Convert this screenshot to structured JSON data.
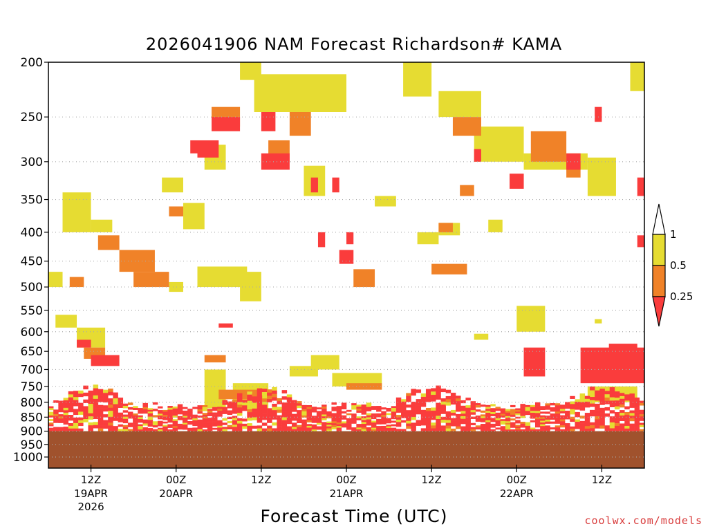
{
  "chart_data": {
    "type": "heatmap",
    "title": "2026041906 NAM Forecast Richardson# KAMA",
    "xlabel": "Forecast Time (UTC)",
    "ylabel": "",
    "y_axis": {
      "scale": "log-pressure (inverted)",
      "unit_implied": "mb",
      "ticks": [
        200,
        250,
        300,
        350,
        400,
        450,
        500,
        550,
        600,
        650,
        700,
        750,
        800,
        850,
        900,
        950,
        1000
      ],
      "range": [
        1000,
        200
      ],
      "gridlines": "dotted"
    },
    "x_axis": {
      "ticks": [
        {
          "hour": 6,
          "label": "12Z",
          "sub": "19APR",
          "sub2": "2026"
        },
        {
          "hour": 18,
          "label": "00Z",
          "sub": "20APR",
          "sub2": ""
        },
        {
          "hour": 30,
          "label": "12Z",
          "sub": "",
          "sub2": ""
        },
        {
          "hour": 42,
          "label": "00Z",
          "sub": "21APR",
          "sub2": ""
        },
        {
          "hour": 54,
          "label": "12Z",
          "sub": "",
          "sub2": ""
        },
        {
          "hour": 66,
          "label": "00Z",
          "sub": "22APR",
          "sub2": ""
        },
        {
          "hour": 78,
          "label": "12Z",
          "sub": "",
          "sub2": ""
        }
      ],
      "range_hours": [
        0,
        84
      ],
      "start": "2026041906"
    },
    "colorbar": {
      "levels": [
        "1",
        "0.5",
        "0.25"
      ],
      "bins": [
        {
          "range": "> 1",
          "color": "#ffffff",
          "fill": "none"
        },
        {
          "range": "0.5 - 1",
          "color": "#e6dc32"
        },
        {
          "range": "0.25 - 0.5",
          "color": "#f08228"
        },
        {
          "range": "< 0.25",
          "color": "#fa3c3c"
        }
      ]
    },
    "terrain": {
      "color": "#a0522d",
      "surface_pressure_approx": 900
    },
    "regions": [
      {
        "cat": "Y",
        "t0": 27,
        "t1": 30,
        "p0": 200,
        "p1": 215
      },
      {
        "cat": "Y",
        "t0": 29,
        "t1": 42,
        "p0": 210,
        "p1": 245
      },
      {
        "cat": "Y",
        "t0": 50,
        "t1": 54,
        "p0": 200,
        "p1": 230
      },
      {
        "cat": "Y",
        "t0": 55,
        "t1": 61,
        "p0": 225,
        "p1": 250
      },
      {
        "cat": "Y",
        "t0": 60,
        "t1": 67,
        "p0": 260,
        "p1": 300
      },
      {
        "cat": "Y",
        "t0": 67,
        "t1": 76,
        "p0": 290,
        "p1": 310
      },
      {
        "cat": "Y",
        "t0": 76,
        "t1": 80,
        "p0": 295,
        "p1": 345
      },
      {
        "cat": "Y",
        "t0": 82,
        "t1": 84,
        "p0": 200,
        "p1": 225
      },
      {
        "cat": "Y",
        "t0": 2,
        "t1": 6,
        "p0": 340,
        "p1": 400
      },
      {
        "cat": "Y",
        "t0": 6,
        "t1": 9,
        "p0": 380,
        "p1": 400
      },
      {
        "cat": "Y",
        "t0": 16,
        "t1": 19,
        "p0": 320,
        "p1": 340
      },
      {
        "cat": "Y",
        "t0": 19,
        "t1": 22,
        "p0": 355,
        "p1": 395
      },
      {
        "cat": "Y",
        "t0": 22,
        "t1": 25,
        "p0": 280,
        "p1": 310
      },
      {
        "cat": "Y",
        "t0": 36,
        "t1": 39,
        "p0": 305,
        "p1": 345
      },
      {
        "cat": "Y",
        "t0": 46,
        "t1": 49,
        "p0": 345,
        "p1": 360
      },
      {
        "cat": "Y",
        "t0": 52,
        "t1": 55,
        "p0": 400,
        "p1": 420
      },
      {
        "cat": "Y",
        "t0": 55,
        "t1": 58,
        "p0": 385,
        "p1": 405
      },
      {
        "cat": "Y",
        "t0": 62,
        "t1": 64,
        "p0": 380,
        "p1": 400
      },
      {
        "cat": "Y",
        "t0": 21,
        "t1": 28,
        "p0": 460,
        "p1": 500
      },
      {
        "cat": "Y",
        "t0": 27,
        "t1": 30,
        "p0": 470,
        "p1": 530
      },
      {
        "cat": "Y",
        "t0": 17,
        "t1": 19,
        "p0": 490,
        "p1": 510
      },
      {
        "cat": "Y",
        "t0": 0,
        "t1": 2,
        "p0": 470,
        "p1": 500
      },
      {
        "cat": "Y",
        "t0": 1,
        "t1": 4,
        "p0": 560,
        "p1": 590
      },
      {
        "cat": "Y",
        "t0": 4,
        "t1": 8,
        "p0": 590,
        "p1": 640
      },
      {
        "cat": "Y",
        "t0": 34,
        "t1": 38,
        "p0": 690,
        "p1": 720
      },
      {
        "cat": "Y",
        "t0": 37,
        "t1": 41,
        "p0": 660,
        "p1": 700
      },
      {
        "cat": "Y",
        "t0": 22,
        "t1": 25,
        "p0": 700,
        "p1": 820
      },
      {
        "cat": "Y",
        "t0": 26,
        "t1": 31,
        "p0": 740,
        "p1": 820
      },
      {
        "cat": "Y",
        "t0": 40,
        "t1": 47,
        "p0": 710,
        "p1": 750
      },
      {
        "cat": "Y",
        "t0": 66,
        "t1": 70,
        "p0": 540,
        "p1": 600
      },
      {
        "cat": "Y",
        "t0": 77,
        "t1": 78,
        "p0": 570,
        "p1": 580
      },
      {
        "cat": "Y",
        "t0": 60,
        "t1": 62,
        "p0": 605,
        "p1": 620
      },
      {
        "cat": "Y",
        "t0": 76,
        "t1": 83,
        "p0": 750,
        "p1": 800
      },
      {
        "cat": "O",
        "t0": 23,
        "t1": 27,
        "p0": 240,
        "p1": 260
      },
      {
        "cat": "O",
        "t0": 34,
        "t1": 37,
        "p0": 245,
        "p1": 270
      },
      {
        "cat": "O",
        "t0": 31,
        "t1": 34,
        "p0": 275,
        "p1": 300
      },
      {
        "cat": "O",
        "t0": 57,
        "t1": 61,
        "p0": 250,
        "p1": 270
      },
      {
        "cat": "O",
        "t0": 68,
        "t1": 73,
        "p0": 265,
        "p1": 300
      },
      {
        "cat": "O",
        "t0": 73,
        "t1": 75,
        "p0": 300,
        "p1": 320
      },
      {
        "cat": "O",
        "t0": 58,
        "t1": 60,
        "p0": 330,
        "p1": 345
      },
      {
        "cat": "O",
        "t0": 17,
        "t1": 19,
        "p0": 360,
        "p1": 375
      },
      {
        "cat": "O",
        "t0": 7,
        "t1": 10,
        "p0": 405,
        "p1": 430
      },
      {
        "cat": "O",
        "t0": 10,
        "t1": 15,
        "p0": 430,
        "p1": 470
      },
      {
        "cat": "O",
        "t0": 12,
        "t1": 17,
        "p0": 470,
        "p1": 500
      },
      {
        "cat": "O",
        "t0": 43,
        "t1": 46,
        "p0": 465,
        "p1": 500
      },
      {
        "cat": "O",
        "t0": 54,
        "t1": 59,
        "p0": 455,
        "p1": 475
      },
      {
        "cat": "O",
        "t0": 55,
        "t1": 57,
        "p0": 385,
        "p1": 400
      },
      {
        "cat": "O",
        "t0": 3,
        "t1": 5,
        "p0": 480,
        "p1": 500
      },
      {
        "cat": "O",
        "t0": 5,
        "t1": 8,
        "p0": 640,
        "p1": 670
      },
      {
        "cat": "O",
        "t0": 22,
        "t1": 25,
        "p0": 660,
        "p1": 680
      },
      {
        "cat": "O",
        "t0": 24,
        "t1": 30,
        "p0": 760,
        "p1": 790
      },
      {
        "cat": "O",
        "t0": 42,
        "t1": 47,
        "p0": 740,
        "p1": 760
      },
      {
        "cat": "R",
        "t0": 23,
        "t1": 27,
        "p0": 250,
        "p1": 265
      },
      {
        "cat": "R",
        "t0": 21,
        "t1": 24,
        "p0": 275,
        "p1": 295
      },
      {
        "cat": "R",
        "t0": 30,
        "t1": 32,
        "p0": 245,
        "p1": 265
      },
      {
        "cat": "R",
        "t0": 30,
        "t1": 34,
        "p0": 290,
        "p1": 310
      },
      {
        "cat": "R",
        "t0": 20,
        "t1": 21,
        "p0": 275,
        "p1": 290
      },
      {
        "cat": "R",
        "t0": 37,
        "t1": 38,
        "p0": 320,
        "p1": 340
      },
      {
        "cat": "R",
        "t0": 40,
        "t1": 41,
        "p0": 320,
        "p1": 340
      },
      {
        "cat": "R",
        "t0": 38,
        "t1": 39,
        "p0": 400,
        "p1": 425
      },
      {
        "cat": "R",
        "t0": 41,
        "t1": 43,
        "p0": 430,
        "p1": 455
      },
      {
        "cat": "R",
        "t0": 42,
        "t1": 43,
        "p0": 400,
        "p1": 420
      },
      {
        "cat": "R",
        "t0": 60,
        "t1": 61,
        "p0": 285,
        "p1": 300
      },
      {
        "cat": "R",
        "t0": 65,
        "t1": 67,
        "p0": 315,
        "p1": 335
      },
      {
        "cat": "R",
        "t0": 73,
        "t1": 75,
        "p0": 290,
        "p1": 310
      },
      {
        "cat": "R",
        "t0": 77,
        "t1": 78,
        "p0": 240,
        "p1": 255
      },
      {
        "cat": "R",
        "t0": 83,
        "t1": 84,
        "p0": 320,
        "p1": 345
      },
      {
        "cat": "R",
        "t0": 83,
        "t1": 84,
        "p0": 405,
        "p1": 425
      },
      {
        "cat": "R",
        "t0": 4,
        "t1": 6,
        "p0": 620,
        "p1": 640
      },
      {
        "cat": "R",
        "t0": 6,
        "t1": 10,
        "p0": 660,
        "p1": 690
      },
      {
        "cat": "R",
        "t0": 24,
        "t1": 26,
        "p0": 580,
        "p1": 590
      },
      {
        "cat": "R",
        "t0": 67,
        "t1": 70,
        "p0": 640,
        "p1": 720
      },
      {
        "cat": "R",
        "t0": 75,
        "t1": 84,
        "p0": 640,
        "p1": 740
      },
      {
        "cat": "R",
        "t0": 79,
        "t1": 83,
        "p0": 630,
        "p1": 680
      }
    ]
  },
  "colors": {
    "terrain": "#a0522d",
    "low_ri_red": "#fa3c3c",
    "mid_ri_orange": "#f08228",
    "high_ri_yellow": "#e6dc32",
    "credit": "#d83a3a"
  },
  "credit": "coolwx.com/models"
}
